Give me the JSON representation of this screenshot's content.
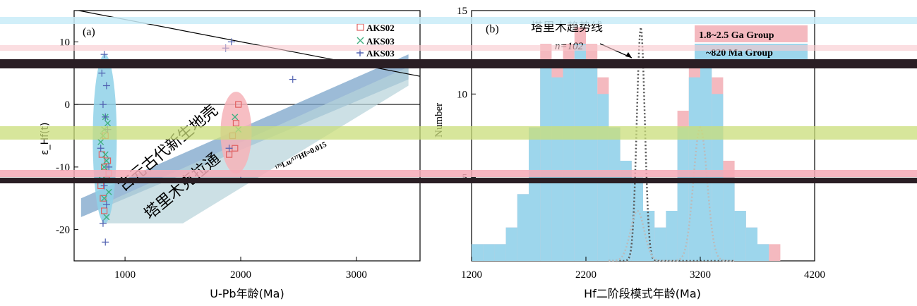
{
  "chart_data": [
    {
      "panel": "(a)",
      "type": "scatter",
      "xlabel": "U-Pb年龄(Ma)",
      "ylabel": "ε_Hf(t)",
      "xlim": [
        560,
        3550
      ],
      "ylim": [
        -25,
        15
      ],
      "x_ticks": [
        "1000",
        "2000",
        "3000"
      ],
      "y_ticks": [
        "10",
        "0",
        "-10",
        "-20"
      ],
      "legend": [
        "AKS02",
        "AKS03",
        "AKS03"
      ],
      "legend_position": "top-right",
      "annotations": [
        "古元古代新生地壳",
        "塔里木克拉通",
        "¹⁷⁶Lu/¹⁷⁷Hf=0.015"
      ],
      "series": [
        {
          "name": "AKS02",
          "marker": "square",
          "color": "#e06060",
          "points": [
            [
              820,
              -10
            ],
            [
              800,
              -8
            ],
            [
              840,
              -12
            ],
            [
              810,
              -15
            ],
            [
              830,
              -5
            ],
            [
              850,
              -9
            ],
            [
              790,
              -13
            ],
            [
              860,
              -11
            ],
            [
              820,
              -17
            ],
            [
              1980,
              0
            ],
            [
              1930,
              -5
            ],
            [
              1960,
              -3
            ],
            [
              1900,
              -8
            ],
            [
              1950,
              -7
            ]
          ]
        },
        {
          "name": "AKS03",
          "marker": "x",
          "color": "#40b080",
          "points": [
            [
              820,
              -15
            ],
            [
              840,
              -18
            ],
            [
              800,
              -12
            ],
            [
              830,
              -8
            ],
            [
              810,
              -5
            ],
            [
              850,
              -3
            ],
            [
              820,
              -10
            ],
            [
              860,
              -14
            ],
            [
              790,
              -6
            ],
            [
              830,
              -2
            ],
            [
              840,
              -9
            ],
            [
              820,
              -4
            ],
            [
              1980,
              -4
            ],
            [
              1950,
              -2
            ]
          ]
        },
        {
          "name": "AKS03",
          "marker": "plus",
          "color": "#5060b0",
          "points": [
            [
              820,
              8
            ],
            [
              800,
              5
            ],
            [
              840,
              3
            ],
            [
              810,
              0
            ],
            [
              830,
              -2
            ],
            [
              850,
              -4
            ],
            [
              790,
              -7
            ],
            [
              860,
              -10
            ],
            [
              820,
              -13
            ],
            [
              840,
              -16
            ],
            [
              810,
              -19
            ],
            [
              830,
              -22
            ],
            [
              1870,
              9
            ],
            [
              1920,
              10
            ],
            [
              2450,
              4
            ],
            [
              1900,
              -7
            ],
            [
              2000,
              -12
            ]
          ]
        }
      ]
    },
    {
      "panel": "(b)",
      "type": "bar",
      "xlabel": "Hf二阶段模式年龄(Ma)",
      "ylabel": "Number",
      "xlim": [
        1200,
        4200
      ],
      "ylim": [
        0,
        15
      ],
      "x_ticks": [
        "1200",
        "2200",
        "3200",
        "4200"
      ],
      "y_ticks": [
        "5",
        "10",
        "15"
      ],
      "legend": [
        "1.8~2.5 Ga Group",
        "~820 Ma Group"
      ],
      "legend_position": "top-right",
      "annotations": [
        "塔里木趋势线",
        "n=102"
      ],
      "bin_width": 100,
      "bins": [
        1250,
        1350,
        1450,
        1550,
        1650,
        1750,
        1850,
        1950,
        2050,
        2150,
        2250,
        2350,
        2450,
        2550,
        2650,
        2750,
        2850,
        2950,
        3050,
        3150,
        3250,
        3350,
        3450,
        3550,
        3650,
        3750,
        3850
      ],
      "series": [
        {
          "name": "1.8~2.5 Ga Group",
          "color": "#f4b9bf",
          "values": [
            1,
            1,
            1,
            2,
            4,
            8,
            13,
            12,
            13,
            14,
            13,
            11,
            8,
            6,
            5,
            3,
            2,
            3,
            9,
            12,
            13,
            11,
            6,
            3,
            2,
            1,
            1
          ]
        },
        {
          "name": "~820 Ma Group",
          "color": "#9dd6ec",
          "values": [
            1,
            1,
            1,
            2,
            4,
            8,
            12,
            11,
            12,
            13,
            12,
            10,
            8,
            6,
            5,
            3,
            2,
            3,
            8,
            11,
            12,
            10,
            5,
            3,
            2,
            1,
            0
          ]
        }
      ]
    }
  ]
}
